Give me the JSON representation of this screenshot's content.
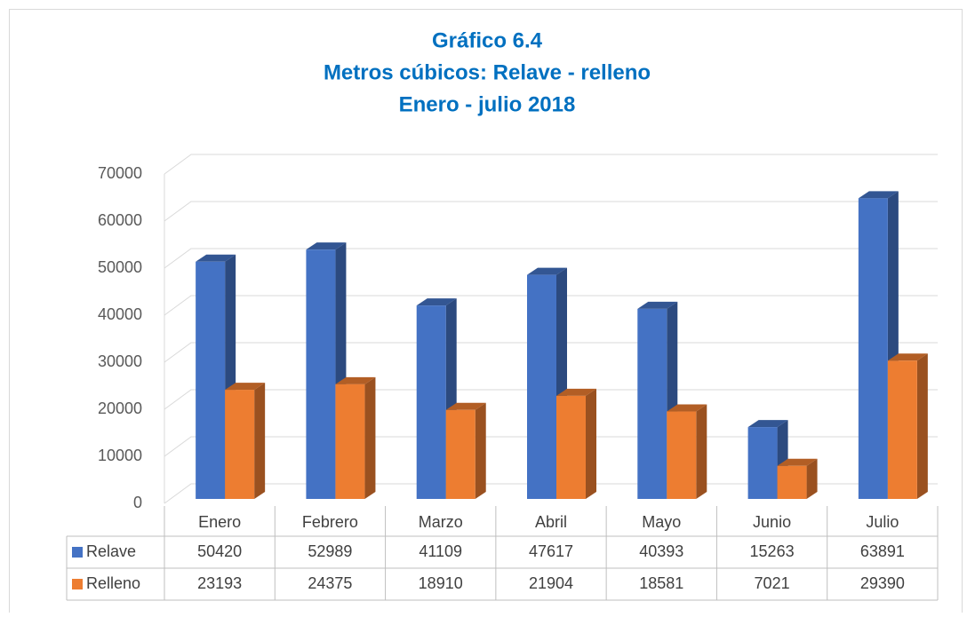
{
  "chart_data": {
    "type": "bar3d",
    "title": [
      "Gráfico 6.4",
      "Metros cúbicos: Relave - relleno",
      "Enero - julio 2018"
    ],
    "categories": [
      "Enero",
      "Febrero",
      "Marzo",
      "Abril",
      "Mayo",
      "Junio",
      "Julio"
    ],
    "series": [
      {
        "name": "Relave",
        "color": "#4472c4",
        "values": [
          50420,
          52989,
          41109,
          47617,
          40393,
          15263,
          63891
        ]
      },
      {
        "name": "Relleno",
        "color": "#ed7d31",
        "values": [
          23193,
          24375,
          18910,
          21904,
          18581,
          7021,
          29390
        ]
      }
    ],
    "ylim": [
      0,
      70000
    ],
    "yticks": [
      0,
      10000,
      20000,
      30000,
      40000,
      50000,
      60000,
      70000
    ],
    "grid": true,
    "data_table": true
  }
}
